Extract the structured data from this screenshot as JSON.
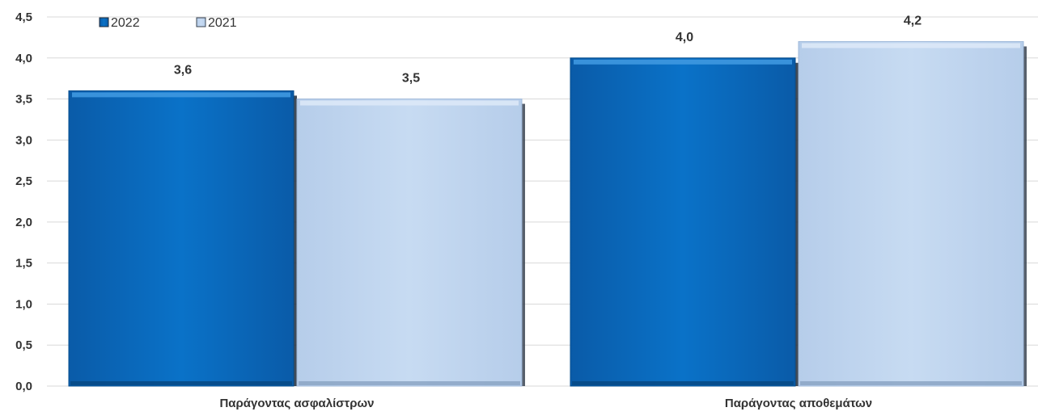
{
  "chart_data": {
    "type": "bar",
    "categories": [
      "Παράγοντας ασφαλίστρων",
      "Παράγοντας αποθεμάτων"
    ],
    "series": [
      {
        "name": "2022",
        "values": [
          3.6,
          4.0
        ],
        "labels": [
          "3,6",
          "4,0"
        ],
        "color": "#0A6FC2"
      },
      {
        "name": "2021",
        "values": [
          3.5,
          4.2
        ],
        "labels": [
          "3,5",
          "4,2"
        ],
        "color": "#C5D9F1"
      }
    ],
    "ylim": [
      0,
      4.5
    ],
    "yticks": [
      0,
      0.5,
      1.0,
      1.5,
      2.0,
      2.5,
      3.0,
      3.5,
      4.0,
      4.5
    ],
    "ytick_labels": [
      "0,0",
      "0,5",
      "1,0",
      "1,5",
      "2,0",
      "2,5",
      "3,0",
      "3,5",
      "4,0",
      "4,5"
    ],
    "grid": true,
    "legend_position": "top-left",
    "title": "",
    "xlabel": "",
    "ylabel": ""
  }
}
